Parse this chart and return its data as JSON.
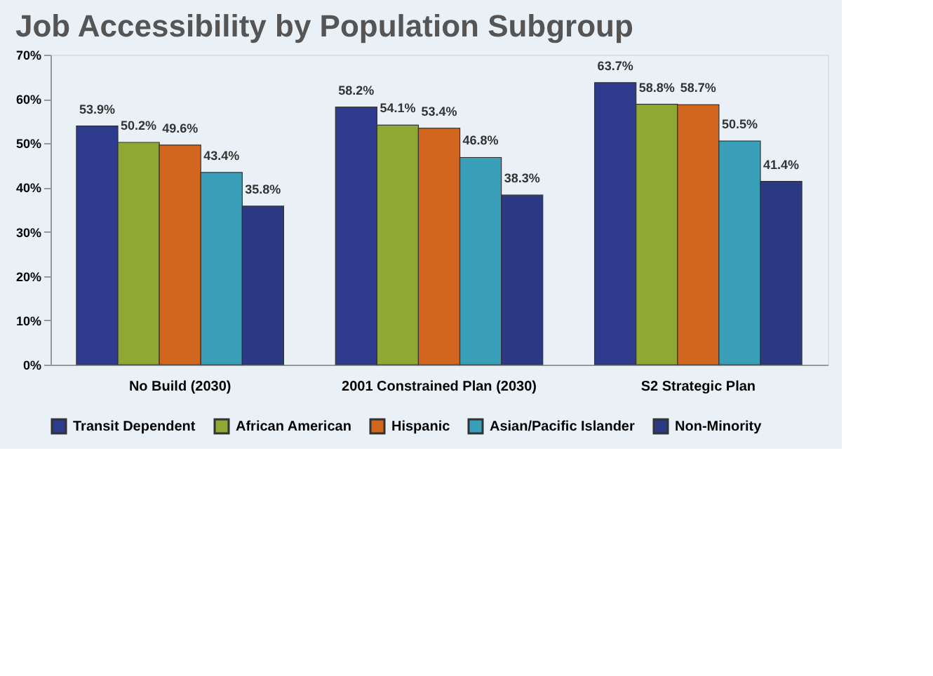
{
  "chart_data": {
    "type": "bar",
    "title": "Job Accessibility by Population Subgroup",
    "categories": [
      "No Build (2030)",
      "2001 Constrained Plan (2030)",
      "S2 Strategic Plan"
    ],
    "series": [
      {
        "name": "Transit Dependent",
        "color": "#2e3b8c",
        "values": [
          53.9,
          58.2,
          63.7
        ],
        "value_labels": [
          "53.9%",
          "58.2%",
          "63.7%"
        ]
      },
      {
        "name": "African American",
        "color": "#8fa833",
        "values": [
          50.2,
          54.1,
          58.8
        ],
        "value_labels": [
          "50.2%",
          "54.1%",
          "58.8%"
        ]
      },
      {
        "name": "Hispanic",
        "color": "#d2661f",
        "values": [
          49.6,
          53.4,
          58.7
        ],
        "value_labels": [
          "49.6%",
          "53.4%",
          "58.7%"
        ]
      },
      {
        "name": "Asian/Pacific Islander",
        "color": "#3a9fb8",
        "values": [
          43.4,
          46.8,
          50.5
        ],
        "value_labels": [
          "43.4%",
          "46.8%",
          "50.5%"
        ]
      },
      {
        "name": "Non-Minority",
        "color": "#2b3984",
        "values": [
          35.8,
          38.3,
          41.4
        ],
        "value_labels": [
          "35.8%",
          "38.3%",
          "41.4%"
        ]
      }
    ],
    "ylim": [
      0,
      70
    ],
    "yticks": [
      {
        "value": 0,
        "label": "0%"
      },
      {
        "value": 10,
        "label": "10%"
      },
      {
        "value": 20,
        "label": "20%"
      },
      {
        "value": 30,
        "label": "30%"
      },
      {
        "value": 40,
        "label": "40%"
      },
      {
        "value": 50,
        "label": "50%"
      },
      {
        "value": 60,
        "label": "60%"
      },
      {
        "value": 70,
        "label": "70%"
      }
    ],
    "grid": false,
    "legend": "bottom"
  }
}
